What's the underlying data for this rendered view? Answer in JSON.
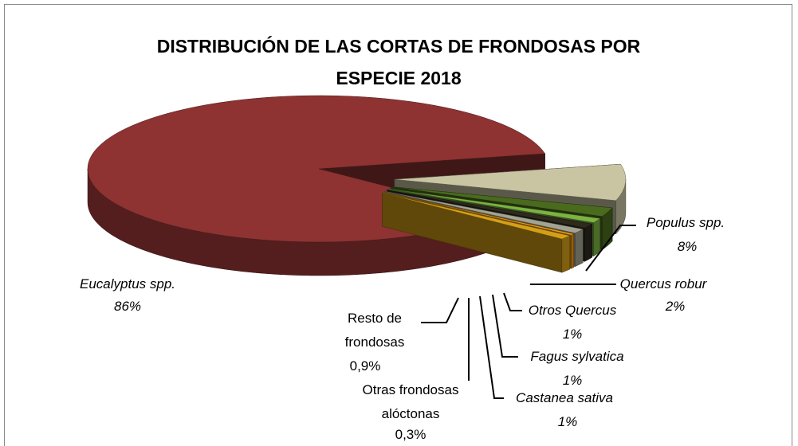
{
  "chart_data": {
    "type": "pie3d",
    "title": "DISTRIBUCIÓN DE LAS CORTAS DE FRONDOSAS POR ESPECIE 2018",
    "categories": [
      "Populus spp.",
      "Quercus robur",
      "Otros Quercus",
      "Fagus sylvatica",
      "Castanea sativa",
      "Otras frondosas alóctonas",
      "Resto de frondosas",
      "Eucalyptus spp."
    ],
    "values": [
      8,
      2,
      1,
      1,
      1,
      0.3,
      0.9,
      86
    ],
    "value_labels": [
      "8%",
      "2%",
      "1%",
      "1%",
      "1%",
      "0,3%",
      "0,9%",
      "86%"
    ],
    "colors": [
      "#c9c5a3",
      "#4a6a1e",
      "#7cb342",
      "#2e2a1e",
      "#a3a391",
      "#f39c12",
      "#d4a017",
      "#8e3232"
    ]
  }
}
